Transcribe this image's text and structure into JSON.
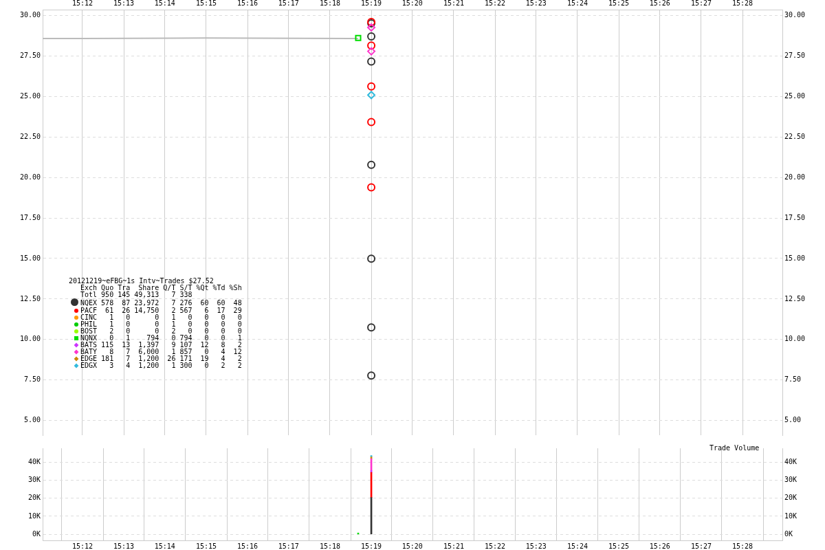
{
  "chart_data": [
    {
      "type": "scatter",
      "title": "20121219~eFBG~1s Intv~Trades $27.52",
      "xlim": [
        15.1839,
        15.4828
      ],
      "xticks": [
        {
          "value": 15.2,
          "label": "15:12"
        },
        {
          "value": 15.2167,
          "label": "15:13"
        },
        {
          "value": 15.2333,
          "label": "15:14"
        },
        {
          "value": 15.25,
          "label": "15:15"
        },
        {
          "value": 15.2667,
          "label": "15:16"
        },
        {
          "value": 15.2833,
          "label": "15:17"
        },
        {
          "value": 15.3,
          "label": "15:18"
        },
        {
          "value": 15.3167,
          "label": "15:19"
        },
        {
          "value": 15.3333,
          "label": "15:20"
        },
        {
          "value": 15.35,
          "label": "15:21"
        },
        {
          "value": 15.3667,
          "label": "15:22"
        },
        {
          "value": 15.3833,
          "label": "15:23"
        },
        {
          "value": 15.4,
          "label": "15:24"
        },
        {
          "value": 15.4167,
          "label": "15:25"
        },
        {
          "value": 15.4333,
          "label": "15:26"
        },
        {
          "value": 15.45,
          "label": "15:27"
        },
        {
          "value": 15.4667,
          "label": "15:28"
        }
      ],
      "ylim": [
        4.1,
        30.35
      ],
      "yticks": [
        {
          "value": 5,
          "label": "5.00"
        },
        {
          "value": 7.5,
          "label": "7.50"
        },
        {
          "value": 10,
          "label": "10.00"
        },
        {
          "value": 12.5,
          "label": "12.50"
        },
        {
          "value": 15,
          "label": "15.00"
        },
        {
          "value": 17.5,
          "label": "17.50"
        },
        {
          "value": 20,
          "label": "20.00"
        },
        {
          "value": 22.5,
          "label": "22.50"
        },
        {
          "value": 25,
          "label": "25.00"
        },
        {
          "value": 27.5,
          "label": "27.50"
        },
        {
          "value": 30,
          "label": "30.00"
        }
      ],
      "y2lim": [
        4.1,
        30.35
      ],
      "y2ticks": [
        {
          "value": 5,
          "label": "5.00"
        },
        {
          "value": 7.5,
          "label": "7.50"
        },
        {
          "value": 10,
          "label": "10.00"
        },
        {
          "value": 12.5,
          "label": "12.50"
        },
        {
          "value": 15,
          "label": "15.00"
        },
        {
          "value": 17.5,
          "label": "17.50"
        },
        {
          "value": 20,
          "label": "20.00"
        },
        {
          "value": 22.5,
          "label": "22.50"
        },
        {
          "value": 25,
          "label": "25.00"
        },
        {
          "value": 27.5,
          "label": "27.50"
        },
        {
          "value": 30,
          "label": "30.00"
        }
      ],
      "grid": true,
      "legend": "left",
      "annotations": [
        "Exch Quo Tra Share Q/T S/T %Qt %Td %Sh",
        "Totl 950 145 49,313 7 338",
        "578 87 23,972 7 276 60 60 48",
        "61 26 14,750 2 567 6 17 29",
        "1 0 0 1 0 0 0 0",
        "1 0 0 1 0 0 0 0",
        "2 0 0 2 0 0 0 0",
        "0 1 794 0 794 0 0 1",
        "115 13 1,397 9 107 12 8 2",
        "8 7 6,000 1 857 0 4 12",
        "181 7 1,200 26 171 19 4 2",
        "3 4 1,200 1 300 0 2 2"
      ],
      "series": [
        {
          "type": "line",
          "color": "#bbbbbb",
          "marker": "none",
          "x": [
            15.1839,
            15.2,
            15.25,
            15.3114
          ],
          "values": [
            28.57,
            28.57,
            28.6,
            28.57
          ]
        },
        {
          "name": "NQEX",
          "color": "#333333",
          "marker": "circle",
          "x": [
            15.3167,
            15.3167,
            15.3167,
            15.3167,
            15.3167,
            15.3167,
            15.3167
          ],
          "values": [
            29.5,
            28.7,
            27.15,
            20.78,
            14.99,
            10.75,
            7.78
          ]
        },
        {
          "name": "PACF",
          "color": "#ff0000",
          "marker": "circle",
          "x": [
            15.3167,
            15.3167,
            15.3167,
            15.3167,
            15.3167
          ],
          "values": [
            29.59,
            28.13,
            25.61,
            23.42,
            19.39
          ]
        },
        {
          "name": "CINC",
          "color": "#ff9900",
          "marker": "circle"
        },
        {
          "name": "PHIL",
          "color": "#00cc00",
          "marker": "circle"
        },
        {
          "name": "BOST",
          "color": "#99ff00",
          "marker": "circle"
        },
        {
          "name": "NQNX",
          "color": "#00dd00",
          "marker": "square",
          "x": [
            15.3114
          ],
          "values": [
            28.6
          ]
        },
        {
          "name": "BATS",
          "color": "#cc33ff",
          "marker": "diamond"
        },
        {
          "name": "BATY",
          "color": "#ff33cc",
          "marker": "diamond",
          "x": [
            15.3167,
            15.3167
          ],
          "values": [
            29.25,
            27.78
          ]
        },
        {
          "name": "EDGE",
          "color": "#cc8800",
          "marker": "diamond"
        },
        {
          "name": "EDGX",
          "color": "#33bbdd",
          "marker": "diamond",
          "x": [
            15.3167
          ],
          "values": [
            25.08
          ]
        }
      ]
    },
    {
      "type": "bar",
      "stacked": true,
      "annotations": [
        "Trade Volume"
      ],
      "x": [
        15.3114,
        15.3167
      ],
      "xlim": [
        15.1839,
        15.4828
      ],
      "xticks": [
        {
          "value": 15.2,
          "label": "15:12"
        },
        {
          "value": 15.2167,
          "label": "15:13"
        },
        {
          "value": 15.2333,
          "label": "15:14"
        },
        {
          "value": 15.25,
          "label": "15:15"
        },
        {
          "value": 15.2667,
          "label": "15:16"
        },
        {
          "value": 15.2833,
          "label": "15:17"
        },
        {
          "value": 15.3,
          "label": "15:18"
        },
        {
          "value": 15.3167,
          "label": "15:19"
        },
        {
          "value": 15.3333,
          "label": "15:20"
        },
        {
          "value": 15.35,
          "label": "15:21"
        },
        {
          "value": 15.3667,
          "label": "15:22"
        },
        {
          "value": 15.3833,
          "label": "15:23"
        },
        {
          "value": 15.4,
          "label": "15:24"
        },
        {
          "value": 15.4167,
          "label": "15:25"
        },
        {
          "value": 15.4333,
          "label": "15:26"
        },
        {
          "value": 15.45,
          "label": "15:27"
        },
        {
          "value": 15.4667,
          "label": "15:28"
        }
      ],
      "ylim": [
        -3300,
        47600
      ],
      "yticks": [
        {
          "value": 0,
          "label": "0K"
        },
        {
          "value": 10000,
          "label": "10K"
        },
        {
          "value": 20000,
          "label": "20K"
        },
        {
          "value": 30000,
          "label": "30K"
        },
        {
          "value": 40000,
          "label": "40K"
        }
      ],
      "y2lim": [
        -3300,
        47600
      ],
      "y2ticks": [
        {
          "value": 0,
          "label": "0K"
        },
        {
          "value": 10000,
          "label": "10K"
        },
        {
          "value": 20000,
          "label": "20K"
        },
        {
          "value": 30000,
          "label": "30K"
        },
        {
          "value": 40000,
          "label": "40K"
        }
      ],
      "grid": true,
      "series": [
        {
          "color": "#00dd00",
          "values": [
            800,
            null
          ]
        },
        {
          "color": "#333333",
          "values": [
            null,
            20400
          ]
        },
        {
          "color": "#ff0000",
          "values": [
            null,
            13900
          ]
        },
        {
          "color": "#cc33ff",
          "values": [
            null,
            1000
          ]
        },
        {
          "color": "#ff33cc",
          "values": [
            null,
            6500
          ]
        },
        {
          "color": "#cc8800",
          "values": [
            null,
            1000
          ]
        },
        {
          "color": "#33bbdd",
          "values": [
            null,
            800
          ]
        }
      ]
    }
  ]
}
